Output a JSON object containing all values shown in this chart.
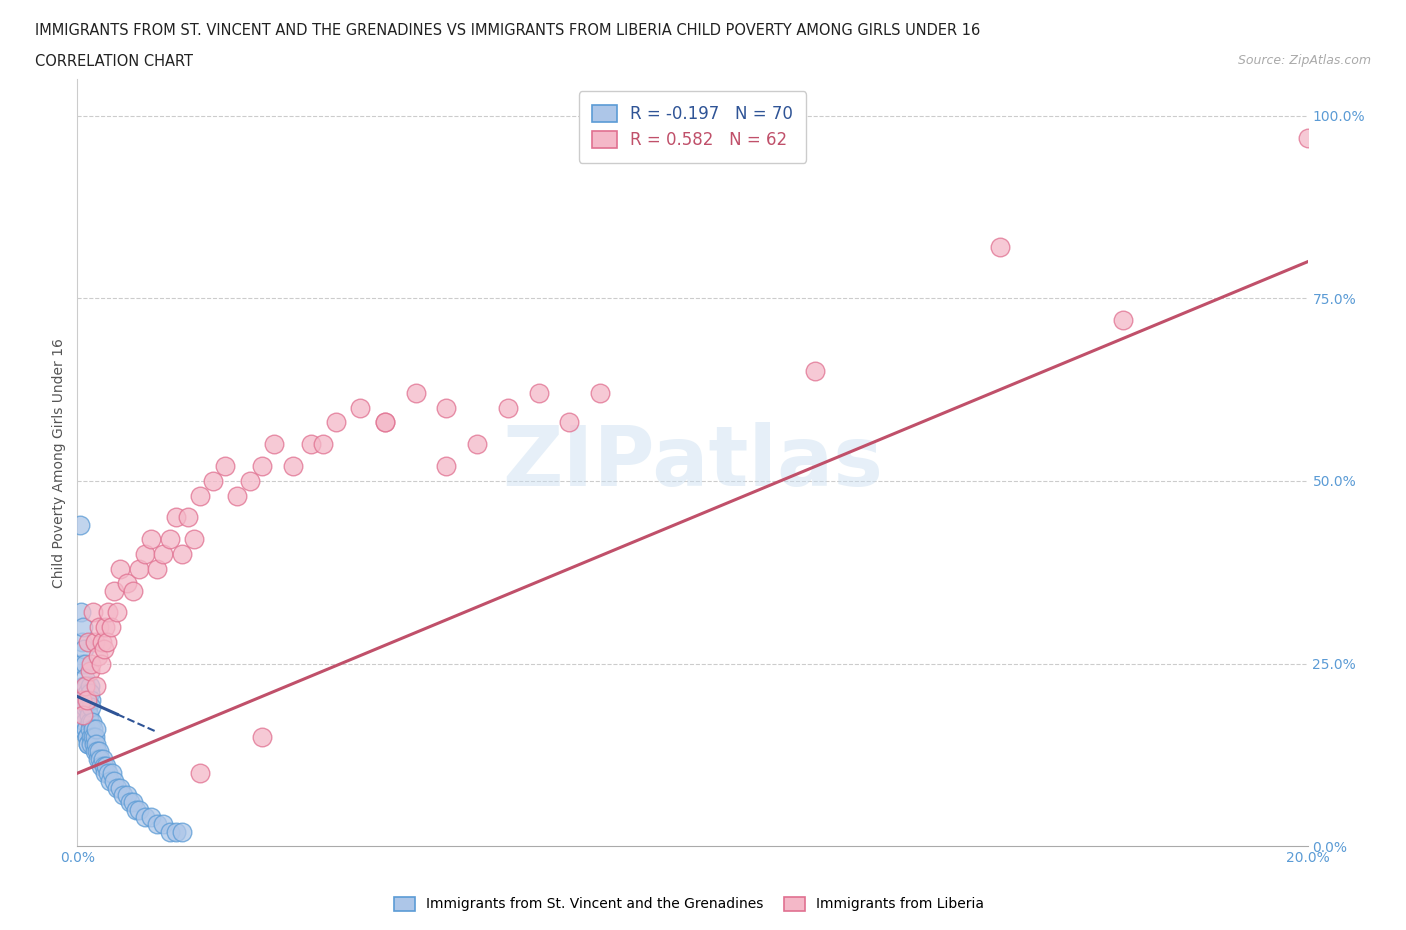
{
  "title_line1": "IMMIGRANTS FROM ST. VINCENT AND THE GRENADINES VS IMMIGRANTS FROM LIBERIA CHILD POVERTY AMONG GIRLS UNDER 16",
  "title_line2": "CORRELATION CHART",
  "source": "Source: ZipAtlas.com",
  "ylabel": "Child Poverty Among Girls Under 16",
  "xlim": [
    0.0,
    0.2
  ],
  "ylim": [
    0.0,
    1.05
  ],
  "yticks": [
    0.0,
    0.25,
    0.5,
    0.75,
    1.0
  ],
  "ytick_labels": [
    "0.0%",
    "25.0%",
    "50.0%",
    "75.0%",
    "100.0%"
  ],
  "xticks": [
    0.0,
    0.02,
    0.04,
    0.06,
    0.08,
    0.1,
    0.12,
    0.14,
    0.16,
    0.18,
    0.2
  ],
  "xtick_labels": [
    "0.0%",
    "",
    "",
    "",
    "",
    "",
    "",
    "",
    "",
    "",
    "20.0%"
  ],
  "blue_R": -0.197,
  "blue_N": 70,
  "pink_R": 0.582,
  "pink_N": 62,
  "blue_color": "#adc6e8",
  "blue_edge_color": "#5b9bd5",
  "pink_color": "#f4b8c8",
  "pink_edge_color": "#e07090",
  "blue_line_color": "#2f5496",
  "pink_line_color": "#c0506a",
  "legend_label_blue": "Immigrants from St. Vincent and the Grenadines",
  "legend_label_pink": "Immigrants from Liberia",
  "watermark": "ZIPatlas",
  "background_color": "#ffffff",
  "blue_x": [
    0.0005,
    0.0006,
    0.0007,
    0.0007,
    0.0008,
    0.0009,
    0.001,
    0.001,
    0.001,
    0.0011,
    0.0011,
    0.0012,
    0.0012,
    0.0013,
    0.0013,
    0.0014,
    0.0014,
    0.0015,
    0.0015,
    0.0016,
    0.0016,
    0.0017,
    0.0017,
    0.0018,
    0.0018,
    0.0019,
    0.002,
    0.002,
    0.0021,
    0.0021,
    0.0022,
    0.0022,
    0.0023,
    0.0023,
    0.0024,
    0.0025,
    0.0026,
    0.0027,
    0.0028,
    0.0029,
    0.003,
    0.0031,
    0.0032,
    0.0033,
    0.0035,
    0.0037,
    0.0039,
    0.0041,
    0.0043,
    0.0045,
    0.0047,
    0.005,
    0.0053,
    0.0056,
    0.006,
    0.0065,
    0.007,
    0.0075,
    0.008,
    0.0085,
    0.009,
    0.0095,
    0.01,
    0.011,
    0.012,
    0.013,
    0.014,
    0.015,
    0.016,
    0.017
  ],
  "blue_y": [
    0.44,
    0.32,
    0.28,
    0.2,
    0.25,
    0.18,
    0.3,
    0.22,
    0.16,
    0.27,
    0.2,
    0.25,
    0.19,
    0.23,
    0.17,
    0.22,
    0.16,
    0.2,
    0.15,
    0.21,
    0.15,
    0.2,
    0.14,
    0.19,
    0.14,
    0.18,
    0.22,
    0.17,
    0.21,
    0.16,
    0.2,
    0.15,
    0.19,
    0.14,
    0.17,
    0.16,
    0.15,
    0.14,
    0.13,
    0.15,
    0.16,
    0.14,
    0.13,
    0.12,
    0.13,
    0.12,
    0.11,
    0.12,
    0.11,
    0.1,
    0.11,
    0.1,
    0.09,
    0.1,
    0.09,
    0.08,
    0.08,
    0.07,
    0.07,
    0.06,
    0.06,
    0.05,
    0.05,
    0.04,
    0.04,
    0.03,
    0.03,
    0.02,
    0.02,
    0.02
  ],
  "pink_x": [
    0.0008,
    0.001,
    0.0013,
    0.0015,
    0.0018,
    0.002,
    0.0023,
    0.0025,
    0.0028,
    0.003,
    0.0033,
    0.0035,
    0.0038,
    0.004,
    0.0043,
    0.0045,
    0.0048,
    0.005,
    0.0055,
    0.006,
    0.0065,
    0.007,
    0.008,
    0.009,
    0.01,
    0.011,
    0.012,
    0.013,
    0.014,
    0.015,
    0.016,
    0.017,
    0.018,
    0.019,
    0.02,
    0.022,
    0.024,
    0.026,
    0.028,
    0.03,
    0.032,
    0.035,
    0.038,
    0.042,
    0.046,
    0.05,
    0.055,
    0.06,
    0.065,
    0.07,
    0.075,
    0.08,
    0.085,
    0.06,
    0.05,
    0.04,
    0.03,
    0.02,
    0.12,
    0.15,
    0.17,
    0.2
  ],
  "pink_y": [
    0.2,
    0.18,
    0.22,
    0.2,
    0.28,
    0.24,
    0.25,
    0.32,
    0.28,
    0.22,
    0.26,
    0.3,
    0.25,
    0.28,
    0.27,
    0.3,
    0.28,
    0.32,
    0.3,
    0.35,
    0.32,
    0.38,
    0.36,
    0.35,
    0.38,
    0.4,
    0.42,
    0.38,
    0.4,
    0.42,
    0.45,
    0.4,
    0.45,
    0.42,
    0.48,
    0.5,
    0.52,
    0.48,
    0.5,
    0.52,
    0.55,
    0.52,
    0.55,
    0.58,
    0.6,
    0.58,
    0.62,
    0.6,
    0.55,
    0.6,
    0.62,
    0.58,
    0.62,
    0.52,
    0.58,
    0.55,
    0.15,
    0.1,
    0.65,
    0.82,
    0.72,
    0.97
  ],
  "blue_trend_x0": 0.0,
  "blue_trend_y0": 0.205,
  "blue_trend_x1": 0.008,
  "blue_trend_y1": 0.175,
  "blue_trend_solid_end_x": 0.0065,
  "blue_trend_dashed_end_x": 0.013,
  "pink_trend_x0": 0.0,
  "pink_trend_y0": 0.1,
  "pink_trend_x1": 0.2,
  "pink_trend_y1": 0.8
}
